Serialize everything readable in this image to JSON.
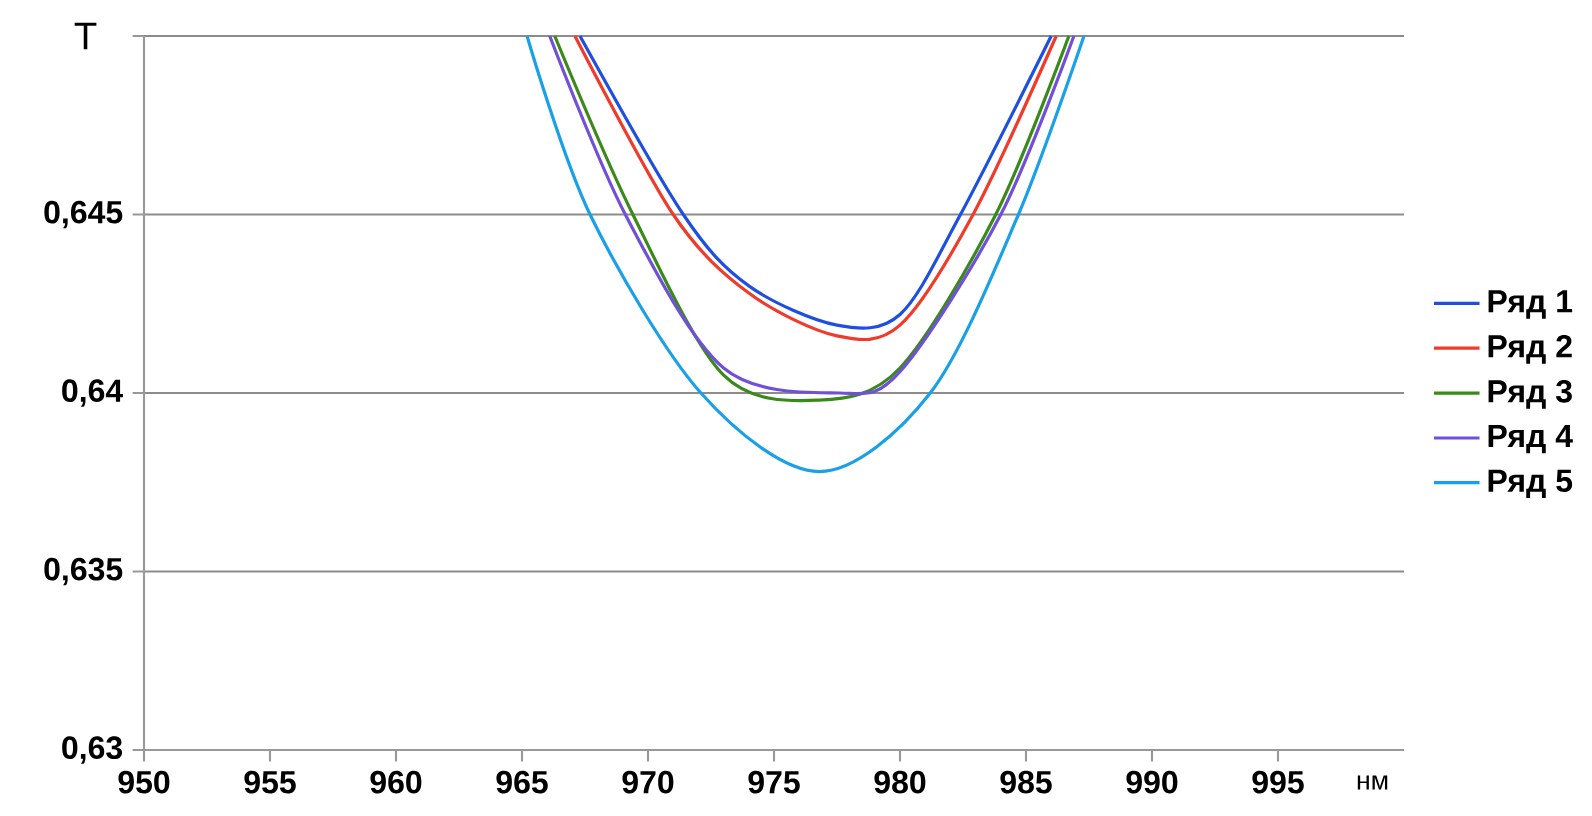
{
  "chart_data": {
    "type": "line",
    "xlabel": "нм",
    "ylabel": "T",
    "xlim": [
      950,
      1000
    ],
    "xticks": [
      950,
      955,
      960,
      965,
      970,
      975,
      980,
      985,
      990,
      995
    ],
    "ylim": [
      0.63,
      0.65
    ],
    "yticks": [
      {
        "value": 0.63,
        "label": "0,63"
      },
      {
        "value": 0.635,
        "label": "0,635"
      },
      {
        "value": 0.64,
        "label": "0,64"
      },
      {
        "value": 0.645,
        "label": "0,645"
      },
      {
        "value": 0.65,
        "label": null
      }
    ],
    "grid": "y",
    "legend": "right",
    "marker": "none",
    "line_style": "solid",
    "series": [
      {
        "name": "Ряд 1",
        "color": "#1f4fe0",
        "x": [
          967.3,
          971.4,
          974,
          977.5,
          980,
          982.4,
          986.0
        ],
        "values": [
          0.65,
          0.645,
          0.643,
          0.6419,
          0.6422,
          0.645,
          0.65
        ]
      },
      {
        "name": "Ряд 2",
        "color": "#f03a2a",
        "x": [
          967.1,
          971.0,
          974,
          977.5,
          980,
          982.9,
          986.2
        ],
        "values": [
          0.65,
          0.645,
          0.6428,
          0.6416,
          0.6419,
          0.645,
          0.65
        ]
      },
      {
        "name": "Ряд 3",
        "color": "#3a8a1a",
        "x": [
          966.3,
          969.4,
          973,
          976.8,
          980,
          983.8,
          986.7
        ],
        "values": [
          0.65,
          0.645,
          0.6405,
          0.6398,
          0.6407,
          0.645,
          0.65
        ]
      },
      {
        "name": "Ряд 4",
        "color": "#7050d8",
        "x": [
          966.1,
          969.1,
          973,
          977.6,
          980,
          984.0,
          986.9
        ],
        "values": [
          0.65,
          0.645,
          0.6407,
          0.64,
          0.6406,
          0.645,
          0.65
        ]
      },
      {
        "name": "Ряд 5",
        "color": "#1aa0e8",
        "x": [
          965.2,
          967.7,
          972.1,
          976.8,
          981.2,
          984.7,
          987.3
        ],
        "values": [
          0.65,
          0.645,
          0.64,
          0.6378,
          0.64,
          0.645,
          0.65
        ]
      }
    ]
  }
}
